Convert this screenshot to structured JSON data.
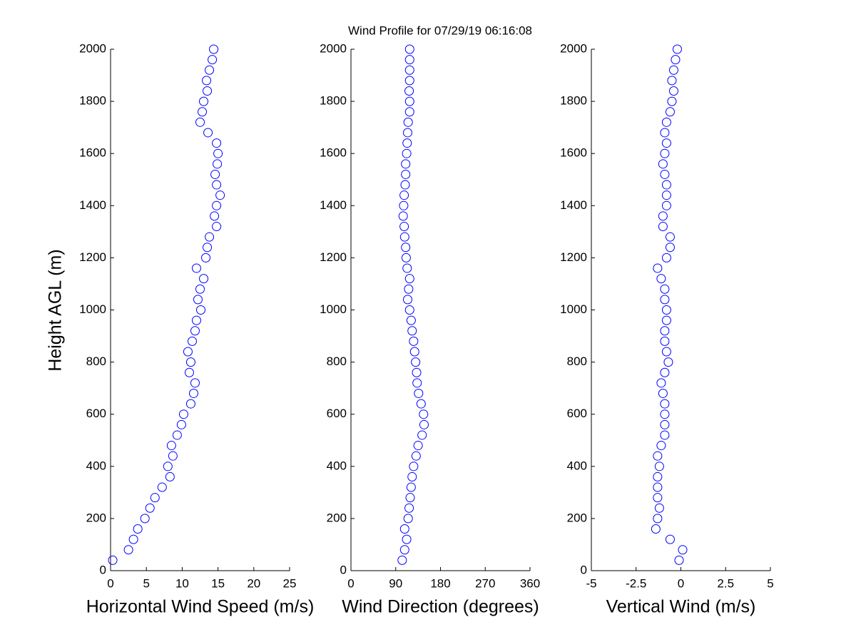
{
  "chart_data": [
    {
      "type": "scatter",
      "title": "Wind Profile for  07/29/19 06:16:08",
      "xlabel": "Horizontal Wind Speed (m/s)",
      "ylabel": "Height AGL (m)",
      "color": "#0000ff",
      "x": [
        0.3,
        2.5,
        3.2,
        3.8,
        4.8,
        5.5,
        6.2,
        7.2,
        8.3,
        8.0,
        8.7,
        8.5,
        9.3,
        9.9,
        10.2,
        11.2,
        11.6,
        11.8,
        11.0,
        11.2,
        10.8,
        11.4,
        11.8,
        12.0,
        12.6,
        12.2,
        12.5,
        13.0,
        12.0,
        13.3,
        13.5,
        13.8,
        14.8,
        14.5,
        14.8,
        15.3,
        14.8,
        14.6,
        14.9,
        15.0,
        14.8,
        13.6,
        12.5,
        12.8,
        13.0,
        13.5,
        13.4,
        13.8,
        14.2,
        14.4
      ],
      "values": [
        40,
        80,
        120,
        160,
        200,
        240,
        280,
        320,
        360,
        400,
        440,
        480,
        520,
        560,
        600,
        640,
        680,
        720,
        760,
        800,
        840,
        880,
        920,
        960,
        1000,
        1040,
        1080,
        1120,
        1160,
        1200,
        1240,
        1280,
        1320,
        1360,
        1400,
        1440,
        1480,
        1520,
        1560,
        1600,
        1640,
        1680,
        1720,
        1760,
        1800,
        1840,
        1880,
        1920,
        1960,
        2000
      ],
      "xlim": [
        0,
        25
      ],
      "xticks": [
        0,
        5,
        10,
        15,
        20,
        25
      ],
      "ylim": [
        0,
        2000
      ],
      "yticks": [
        0,
        200,
        400,
        600,
        800,
        1000,
        1200,
        1400,
        1600,
        1800,
        2000
      ]
    },
    {
      "type": "scatter",
      "xlabel": "Wind Direction (degrees)",
      "color": "#0000ff",
      "x": [
        103,
        108,
        112,
        108,
        115,
        117,
        119,
        121,
        123,
        126,
        131,
        135,
        143,
        147,
        146,
        141,
        136,
        133,
        132,
        130,
        128,
        126,
        123,
        121,
        118,
        114,
        116,
        118,
        113,
        111,
        110,
        108,
        107,
        105,
        106,
        107,
        109,
        110,
        110,
        112,
        113,
        114,
        115,
        118,
        118,
        117,
        118,
        118,
        118,
        118
      ],
      "values": [
        40,
        80,
        120,
        160,
        200,
        240,
        280,
        320,
        360,
        400,
        440,
        480,
        520,
        560,
        600,
        640,
        680,
        720,
        760,
        800,
        840,
        880,
        920,
        960,
        1000,
        1040,
        1080,
        1120,
        1160,
        1200,
        1240,
        1280,
        1320,
        1360,
        1400,
        1440,
        1480,
        1520,
        1560,
        1600,
        1640,
        1680,
        1720,
        1760,
        1800,
        1840,
        1880,
        1920,
        1960,
        2000
      ],
      "xlim": [
        0,
        360
      ],
      "xticks": [
        0,
        90,
        180,
        270,
        360
      ],
      "ylim": [
        0,
        2000
      ],
      "yticks": [
        0,
        200,
        400,
        600,
        800,
        1000,
        1200,
        1400,
        1600,
        1800,
        2000
      ]
    },
    {
      "type": "scatter",
      "xlabel": "Vertical Wind (m/s)",
      "color": "#0000ff",
      "x": [
        -0.1,
        0.1,
        -0.6,
        -1.4,
        -1.3,
        -1.2,
        -1.3,
        -1.3,
        -1.3,
        -1.2,
        -1.3,
        -1.1,
        -0.9,
        -0.9,
        -0.9,
        -0.9,
        -1.0,
        -1.1,
        -0.9,
        -0.7,
        -0.8,
        -0.9,
        -0.9,
        -0.8,
        -0.8,
        -0.9,
        -0.9,
        -1.1,
        -1.3,
        -0.8,
        -0.6,
        -0.6,
        -1.0,
        -1.0,
        -0.8,
        -0.8,
        -0.8,
        -0.9,
        -1.0,
        -0.9,
        -0.8,
        -0.9,
        -0.8,
        -0.6,
        -0.5,
        -0.4,
        -0.5,
        -0.4,
        -0.3,
        -0.2
      ],
      "values": [
        40,
        80,
        120,
        160,
        200,
        240,
        280,
        320,
        360,
        400,
        440,
        480,
        520,
        560,
        600,
        640,
        680,
        720,
        760,
        800,
        840,
        880,
        920,
        960,
        1000,
        1040,
        1080,
        1120,
        1160,
        1200,
        1240,
        1280,
        1320,
        1360,
        1400,
        1440,
        1480,
        1520,
        1560,
        1600,
        1640,
        1680,
        1720,
        1760,
        1800,
        1840,
        1880,
        1920,
        1960,
        2000
      ],
      "xlim": [
        -5,
        5
      ],
      "xticks": [
        -5,
        -2.5,
        0,
        2.5,
        5
      ],
      "ylim": [
        0,
        2000
      ],
      "yticks": [
        0,
        200,
        400,
        600,
        800,
        1000,
        1200,
        1400,
        1600,
        1800,
        2000
      ]
    }
  ]
}
